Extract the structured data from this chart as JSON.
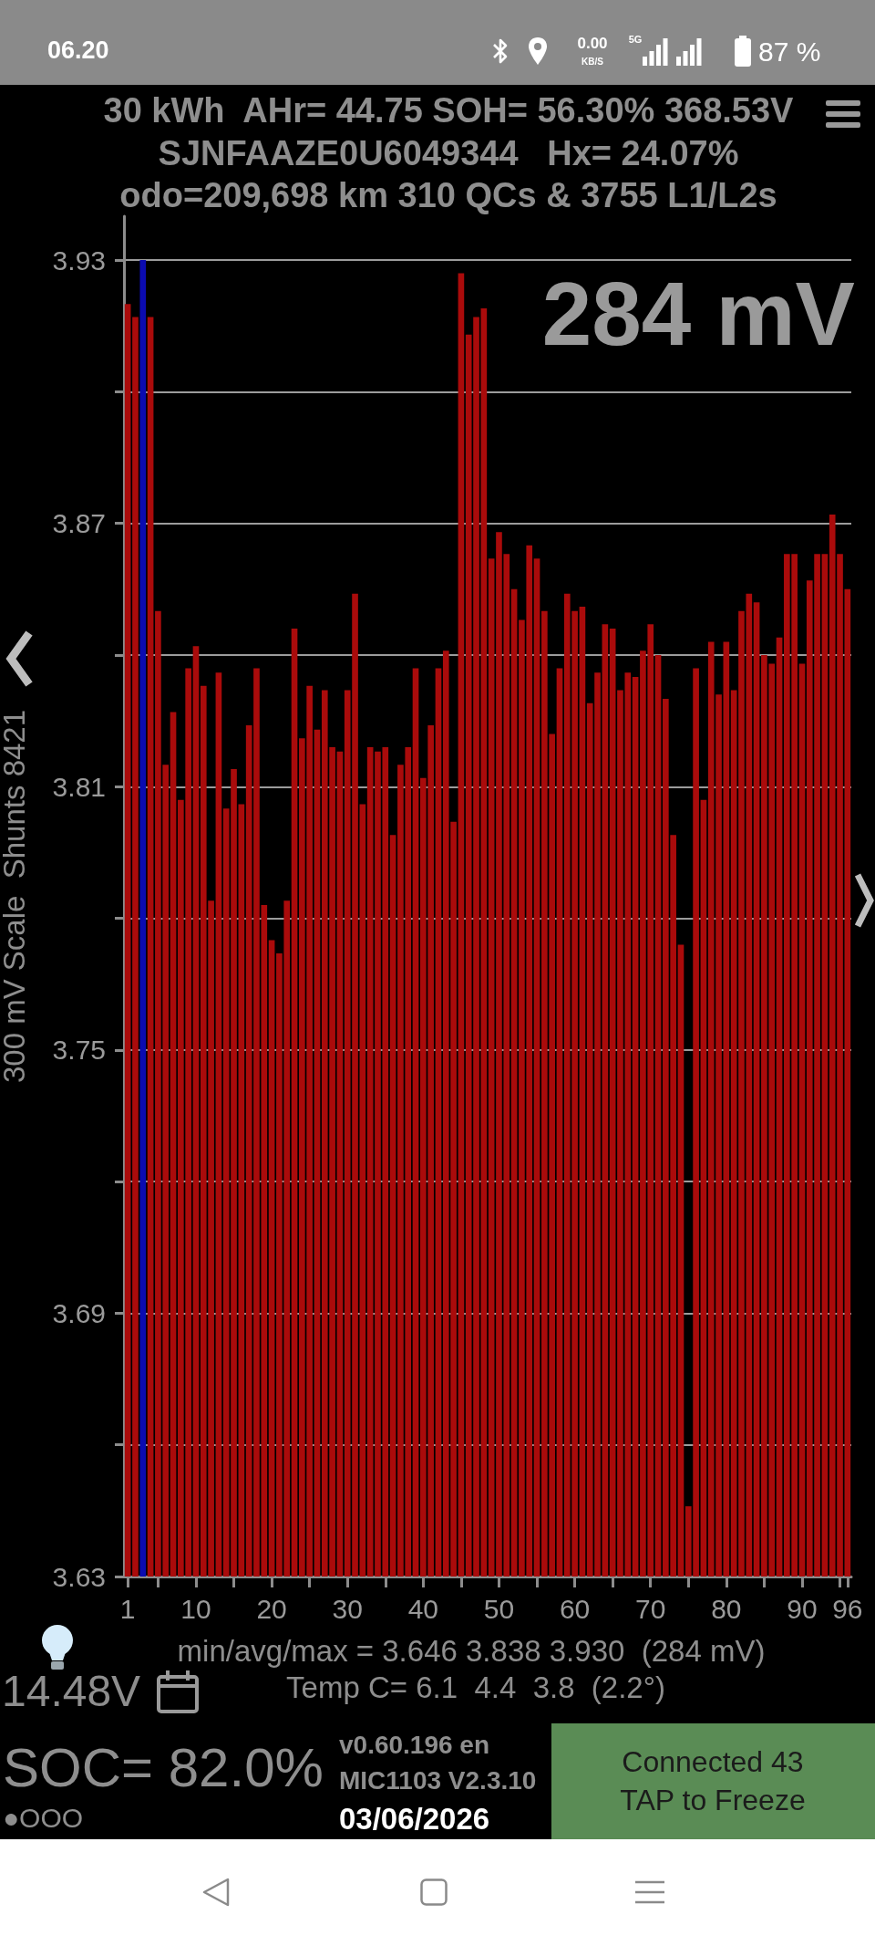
{
  "chart_data": {
    "type": "bar",
    "title": "30 kWh  AHr= 44.75 SOH= 56.30% 368.53V",
    "subtitle": "SJNFAAZE0U6049344   Hx= 24.07%",
    "ylabel": "300 mV Scale  Shunts 8421",
    "x": [
      1,
      2,
      3,
      4,
      5,
      6,
      7,
      8,
      9,
      10,
      11,
      12,
      13,
      14,
      15,
      16,
      17,
      18,
      19,
      20,
      21,
      22,
      23,
      24,
      25,
      26,
      27,
      28,
      29,
      30,
      31,
      32,
      33,
      34,
      35,
      36,
      37,
      38,
      39,
      40,
      41,
      42,
      43,
      44,
      45,
      46,
      47,
      48,
      49,
      50,
      51,
      52,
      53,
      54,
      55,
      56,
      57,
      58,
      59,
      60,
      61,
      62,
      63,
      64,
      65,
      66,
      67,
      68,
      69,
      70,
      71,
      72,
      73,
      74,
      75,
      76,
      77,
      78,
      79,
      80,
      81,
      82,
      83,
      84,
      85,
      86,
      87,
      88,
      89,
      90,
      91,
      92,
      93,
      94,
      95,
      96
    ],
    "values": [
      3.92,
      3.917,
      3.93,
      3.917,
      3.85,
      3.815,
      3.827,
      3.807,
      3.837,
      3.842,
      3.833,
      3.784,
      3.836,
      3.805,
      3.814,
      3.806,
      3.824,
      3.837,
      3.783,
      3.775,
      3.772,
      3.784,
      3.846,
      3.821,
      3.833,
      3.823,
      3.832,
      3.819,
      3.818,
      3.832,
      3.854,
      3.806,
      3.819,
      3.818,
      3.819,
      3.799,
      3.815,
      3.819,
      3.837,
      3.812,
      3.824,
      3.837,
      3.841,
      3.802,
      3.927,
      3.913,
      3.917,
      3.919,
      3.862,
      3.868,
      3.863,
      3.855,
      3.848,
      3.865,
      3.862,
      3.85,
      3.822,
      3.837,
      3.854,
      3.85,
      3.851,
      3.829,
      3.836,
      3.847,
      3.846,
      3.832,
      3.836,
      3.835,
      3.841,
      3.847,
      3.84,
      3.83,
      3.799,
      3.774,
      3.646,
      3.837,
      3.807,
      3.843,
      3.831,
      3.843,
      3.832,
      3.85,
      3.854,
      3.852,
      3.84,
      3.838,
      3.844,
      3.863,
      3.863,
      3.838,
      3.857,
      3.863,
      3.863,
      3.872,
      3.863,
      3.855
    ],
    "colors": [
      "#aa0b0b",
      "#aa0b0b",
      "#0b0bb0",
      "#aa0b0b",
      "#aa0b0b",
      "#aa0b0b",
      "#aa0b0b",
      "#aa0b0b",
      "#aa0b0b",
      "#aa0b0b",
      "#aa0b0b",
      "#aa0b0b",
      "#aa0b0b",
      "#aa0b0b",
      "#aa0b0b",
      "#aa0b0b",
      "#aa0b0b",
      "#aa0b0b",
      "#aa0b0b",
      "#aa0b0b",
      "#aa0b0b",
      "#aa0b0b",
      "#aa0b0b",
      "#aa0b0b",
      "#aa0b0b",
      "#aa0b0b",
      "#aa0b0b",
      "#aa0b0b",
      "#aa0b0b",
      "#aa0b0b",
      "#aa0b0b",
      "#aa0b0b",
      "#aa0b0b",
      "#aa0b0b",
      "#aa0b0b",
      "#aa0b0b",
      "#aa0b0b",
      "#aa0b0b",
      "#aa0b0b",
      "#aa0b0b",
      "#aa0b0b",
      "#aa0b0b",
      "#aa0b0b",
      "#aa0b0b",
      "#aa0b0b",
      "#aa0b0b",
      "#aa0b0b",
      "#aa0b0b",
      "#aa0b0b",
      "#aa0b0b",
      "#aa0b0b",
      "#aa0b0b",
      "#aa0b0b",
      "#aa0b0b",
      "#aa0b0b",
      "#aa0b0b",
      "#aa0b0b",
      "#aa0b0b",
      "#aa0b0b",
      "#aa0b0b",
      "#aa0b0b",
      "#aa0b0b",
      "#aa0b0b",
      "#aa0b0b",
      "#aa0b0b",
      "#aa0b0b",
      "#aa0b0b",
      "#aa0b0b",
      "#aa0b0b",
      "#aa0b0b",
      "#aa0b0b",
      "#aa0b0b",
      "#aa0b0b",
      "#aa0b0b",
      "#aa0b0b",
      "#aa0b0b",
      "#aa0b0b",
      "#aa0b0b",
      "#aa0b0b",
      "#aa0b0b",
      "#aa0b0b",
      "#aa0b0b",
      "#aa0b0b",
      "#aa0b0b",
      "#aa0b0b",
      "#aa0b0b",
      "#aa0b0b",
      "#aa0b0b",
      "#aa0b0b",
      "#aa0b0b",
      "#aa0b0b",
      "#aa0b0b",
      "#aa0b0b",
      "#aa0b0b",
      "#aa0b0b",
      "#aa0b0b"
    ],
    "xlim": [
      0.5,
      96.5
    ],
    "xticks": [
      1,
      {
        "value": 5,
        "label": null
      },
      10,
      {
        "value": 15,
        "label": null
      },
      20,
      {
        "value": 25,
        "label": null
      },
      30,
      {
        "value": 35,
        "label": null
      },
      40,
      {
        "value": 45,
        "label": null
      },
      50,
      {
        "value": 55,
        "label": null
      },
      60,
      {
        "value": 65,
        "label": null
      },
      70,
      {
        "value": 75,
        "label": null
      },
      80,
      {
        "value": 85,
        "label": null
      },
      90,
      {
        "value": 95,
        "label": null
      },
      96
    ],
    "ylim": [
      3.63,
      3.94
    ],
    "yticks": [
      3.63,
      {
        "value": 3.66,
        "label": null
      },
      3.69,
      {
        "value": 3.72,
        "label": null
      },
      3.75,
      {
        "value": 3.78,
        "label": null
      },
      3.81,
      {
        "value": 3.84,
        "label": null
      },
      3.87,
      {
        "value": 3.9,
        "label": null
      },
      3.93
    ],
    "grid": "y",
    "annotations": [
      "odo=209,698 km 310 QCs & 3755 L1/L2s",
      "284 mV",
      "min/avg/max = 3.646 3.838 3.930  (284 mV)",
      "Temp C= 6.1  4.4  3.8  (2.2°)",
      "14.48V",
      "SOC= 82.0%",
      "●OOO",
      "v0.60.196 en",
      "MIC1103 V2.3.10",
      "03/06/2026",
      "Connected 43",
      "TAP to Freeze",
      "06.20",
      "0.00",
      "KB/S",
      "5G",
      "87 %"
    ]
  }
}
